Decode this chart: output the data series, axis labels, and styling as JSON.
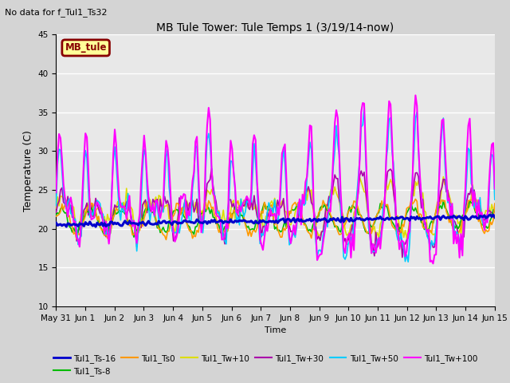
{
  "title": "MB Tule Tower: Tule Temps 1 (3/19/14-now)",
  "top_note": "No data for f_Tul1_Ts32",
  "ylabel": "Temperature (C)",
  "xlabel": "Time",
  "ylim": [
    10,
    45
  ],
  "yticks": [
    10,
    15,
    20,
    25,
    30,
    35,
    40,
    45
  ],
  "xtick_labels": [
    "May 31",
    "Jun 1",
    "Jun 2",
    "Jun 3",
    "Jun 4",
    "Jun 5",
    "Jun 6",
    "Jun 7",
    "Jun 8",
    "Jun 9",
    "Jun 10",
    "Jun 11",
    "Jun 12",
    "Jun 13",
    "Jun 14",
    "Jun 15"
  ],
  "fig_bg_color": "#d4d4d4",
  "plot_bg_color": "#e8e8e8",
  "legend_box_color": "#ffff99",
  "legend_box_border": "#880000",
  "legend_box_text": "MB_tule",
  "series_colors": {
    "Tul1_Ts-16": "#0000cc",
    "Tul1_Ts-8": "#00bb00",
    "Tul1_Ts0": "#ff9900",
    "Tul1_Tw+10": "#dddd00",
    "Tul1_Tw+30": "#aa00aa",
    "Tul1_Tw+50": "#00ccff",
    "Tul1_Tw+100": "#ff00ff"
  },
  "series_linewidths": {
    "Tul1_Ts-16": 2.2,
    "Tul1_Ts-8": 1.2,
    "Tul1_Ts0": 1.2,
    "Tul1_Tw+10": 1.2,
    "Tul1_Tw+30": 1.2,
    "Tul1_Tw+50": 1.2,
    "Tul1_Tw+100": 1.5
  }
}
